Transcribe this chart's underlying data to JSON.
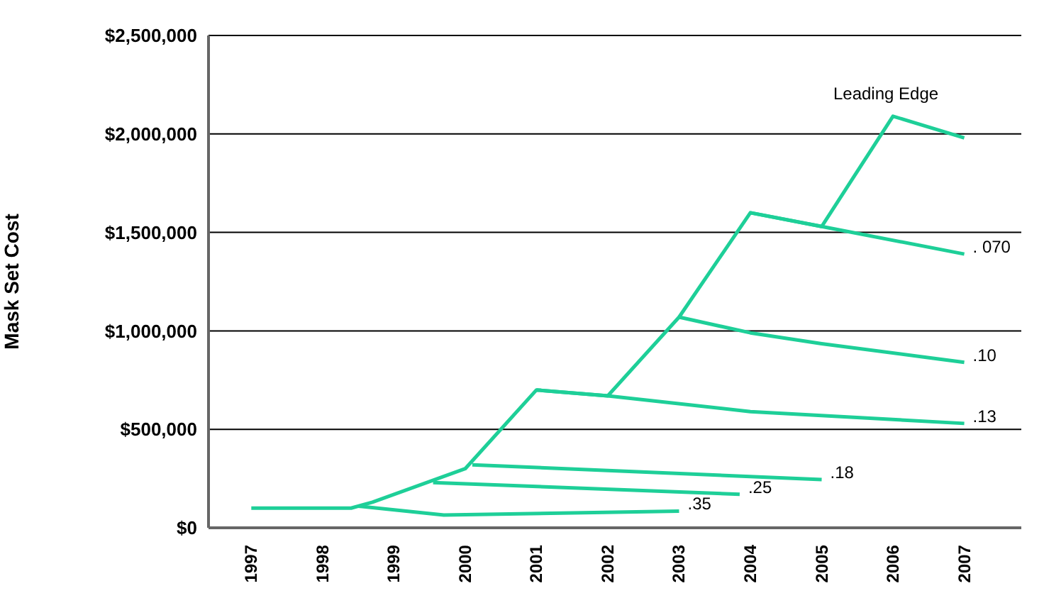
{
  "chart_data": {
    "type": "line",
    "ylabel": "Mask Set Cost",
    "xlim": [
      1996.4,
      2007.8
    ],
    "xticks": [
      1997,
      1998,
      1999,
      2000,
      2001,
      2002,
      2003,
      2004,
      2005,
      2006,
      2007
    ],
    "ylim": [
      0,
      2500000
    ],
    "yticks": [
      {
        "value": 0,
        "label": "$0"
      },
      {
        "value": 500000,
        "label": "$500,000"
      },
      {
        "value": 1000000,
        "label": "$1,000,000"
      },
      {
        "value": 1500000,
        "label": "$1,500,000"
      },
      {
        "value": 2000000,
        "label": "$2,000,000"
      },
      {
        "value": 2500000,
        "label": "$2,500,000"
      }
    ],
    "grid": "y",
    "series": [
      {
        "name": "Leading Edge",
        "color": "#1ecf98",
        "x": [
          1997,
          1998.4,
          1998.7,
          2000,
          2001,
          2002,
          2003,
          2004,
          2005,
          2006,
          2007
        ],
        "values": [
          100000,
          100000,
          130000,
          300000,
          700000,
          670000,
          1070000,
          1600000,
          1530000,
          2090000,
          1980000
        ]
      },
      {
        "name": ".35",
        "color": "#1ecf98",
        "x": [
          1998.5,
          1999.7,
          2003
        ],
        "values": [
          110000,
          65000,
          85000
        ]
      },
      {
        "name": ".25",
        "color": "#1ecf98",
        "x": [
          1999.55,
          2003.85
        ],
        "values": [
          230000,
          170000
        ]
      },
      {
        "name": ".18",
        "color": "#1ecf98",
        "x": [
          2000.1,
          2005
        ],
        "values": [
          320000,
          245000
        ]
      },
      {
        "name": ".13",
        "color": "#1ecf98",
        "x": [
          2001,
          2002,
          2004,
          2007
        ],
        "values": [
          700000,
          670000,
          590000,
          530000
        ]
      },
      {
        "name": ".10",
        "color": "#1ecf98",
        "x": [
          2003,
          2004,
          2005,
          2007
        ],
        "values": [
          1070000,
          990000,
          935000,
          840000
        ]
      },
      {
        "name": ". 070",
        "color": "#1ecf98",
        "x": [
          2004,
          2005,
          2007
        ],
        "values": [
          1600000,
          1530000,
          1390000
        ]
      }
    ]
  }
}
